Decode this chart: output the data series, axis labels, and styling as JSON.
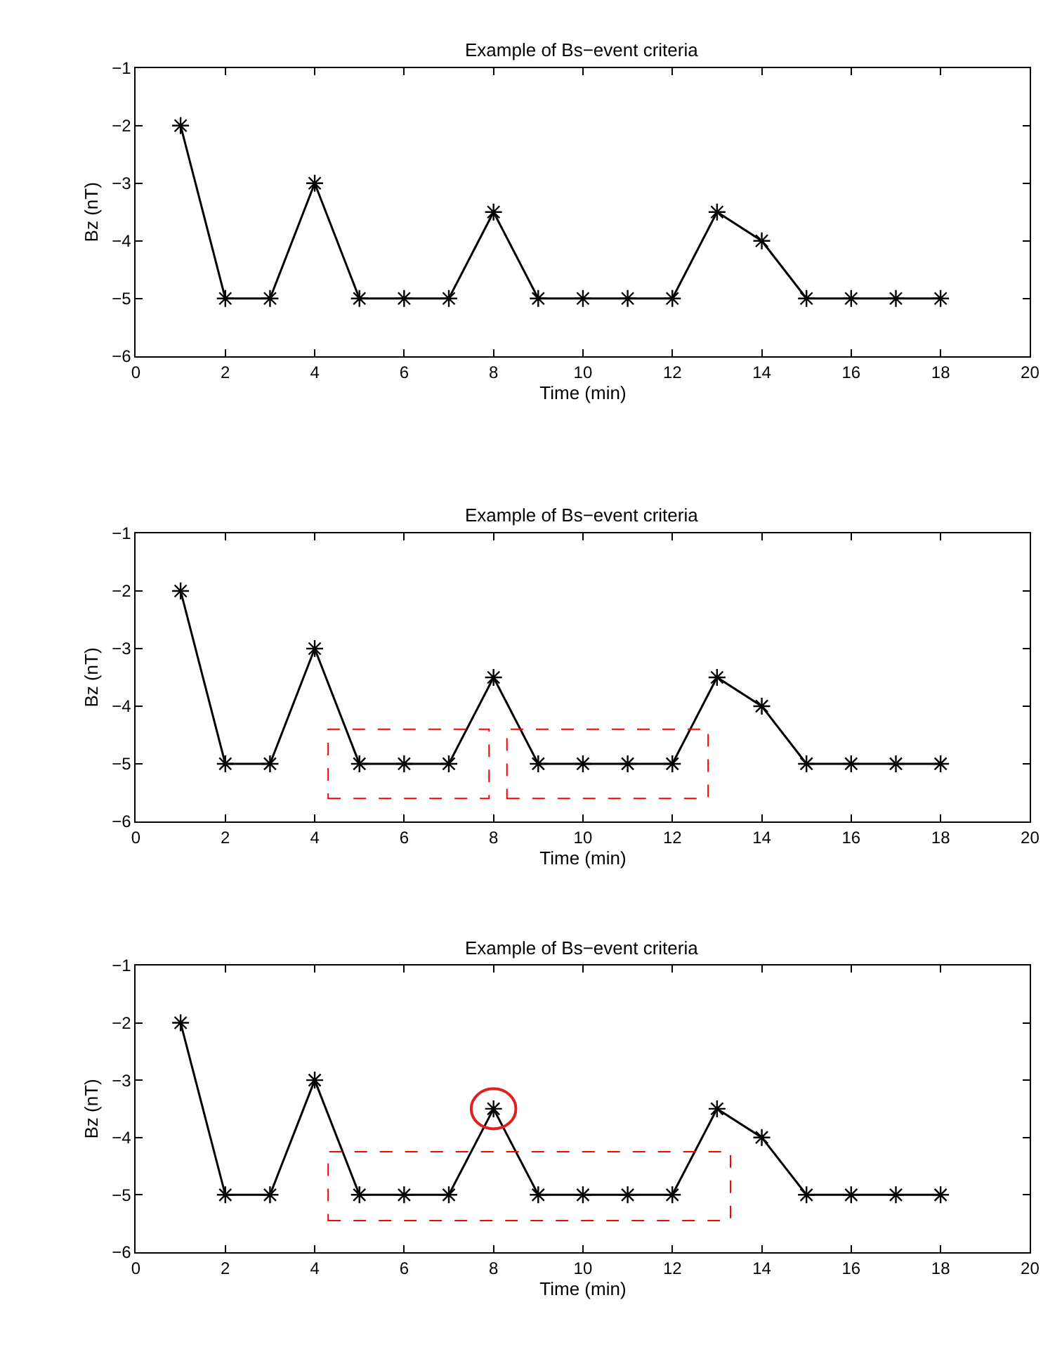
{
  "chart_data": [
    {
      "type": "line",
      "title": "Example of Bs−event criteria",
      "xlabel": "Time (min)",
      "ylabel": "Bz (nT)",
      "x": [
        1,
        2,
        3,
        4,
        5,
        6,
        7,
        8,
        9,
        10,
        11,
        12,
        13,
        14,
        15,
        16,
        17,
        18
      ],
      "series": [
        {
          "color": "#000000",
          "values": [
            -2,
            -5,
            -5,
            -3,
            -5,
            -5,
            -5,
            -3.5,
            -5,
            -5,
            -5,
            -5,
            -3.5,
            -4,
            -5,
            -5,
            -5,
            -5
          ]
        }
      ],
      "xlim": [
        0,
        20
      ],
      "xticks": [
        0,
        2,
        4,
        6,
        8,
        10,
        12,
        14,
        16,
        18,
        20
      ],
      "ylim": [
        -6,
        -1
      ],
      "yticks": [
        -6,
        -5,
        -4,
        -3,
        -2,
        -1
      ],
      "marker": "cross",
      "line_style": "solid"
    },
    {
      "type": "line",
      "title": "Example of Bs−event criteria",
      "xlabel": "Time (min)",
      "ylabel": "Bz (nT)",
      "x": [
        1,
        2,
        3,
        4,
        5,
        6,
        7,
        8,
        9,
        10,
        11,
        12,
        13,
        14,
        15,
        16,
        17,
        18
      ],
      "series": [
        {
          "color": "#000000",
          "values": [
            -2,
            -5,
            -5,
            -3,
            -5,
            -5,
            -5,
            -3.5,
            -5,
            -5,
            -5,
            -5,
            -3.5,
            -4,
            -5,
            -5,
            -5,
            -5
          ]
        }
      ],
      "xlim": [
        0,
        20
      ],
      "xticks": [
        0,
        2,
        4,
        6,
        8,
        10,
        12,
        14,
        16,
        18,
        20
      ],
      "ylim": [
        -6,
        -1
      ],
      "yticks": [
        -6,
        -5,
        -4,
        -3,
        -2,
        -1
      ],
      "marker": "cross",
      "line_style": "solid"
    },
    {
      "type": "line",
      "title": "Example of Bs−event criteria",
      "xlabel": "Time (min)",
      "ylabel": "Bz (nT)",
      "x": [
        1,
        2,
        3,
        4,
        5,
        6,
        7,
        8,
        9,
        10,
        11,
        12,
        13,
        14,
        15,
        16,
        17,
        18
      ],
      "series": [
        {
          "color": "#000000",
          "values": [
            -2,
            -5,
            -5,
            -3,
            -5,
            -5,
            -5,
            -3.5,
            -5,
            -5,
            -5,
            -5,
            -3.5,
            -4,
            -5,
            -5,
            -5,
            -5
          ]
        }
      ],
      "xlim": [
        0,
        20
      ],
      "xticks": [
        0,
        2,
        4,
        6,
        8,
        10,
        12,
        14,
        16,
        18,
        20
      ],
      "ylim": [
        -6,
        -1
      ],
      "yticks": [
        -6,
        -5,
        -4,
        -3,
        -2,
        -1
      ],
      "marker": "cross",
      "line_style": "solid"
    }
  ]
}
